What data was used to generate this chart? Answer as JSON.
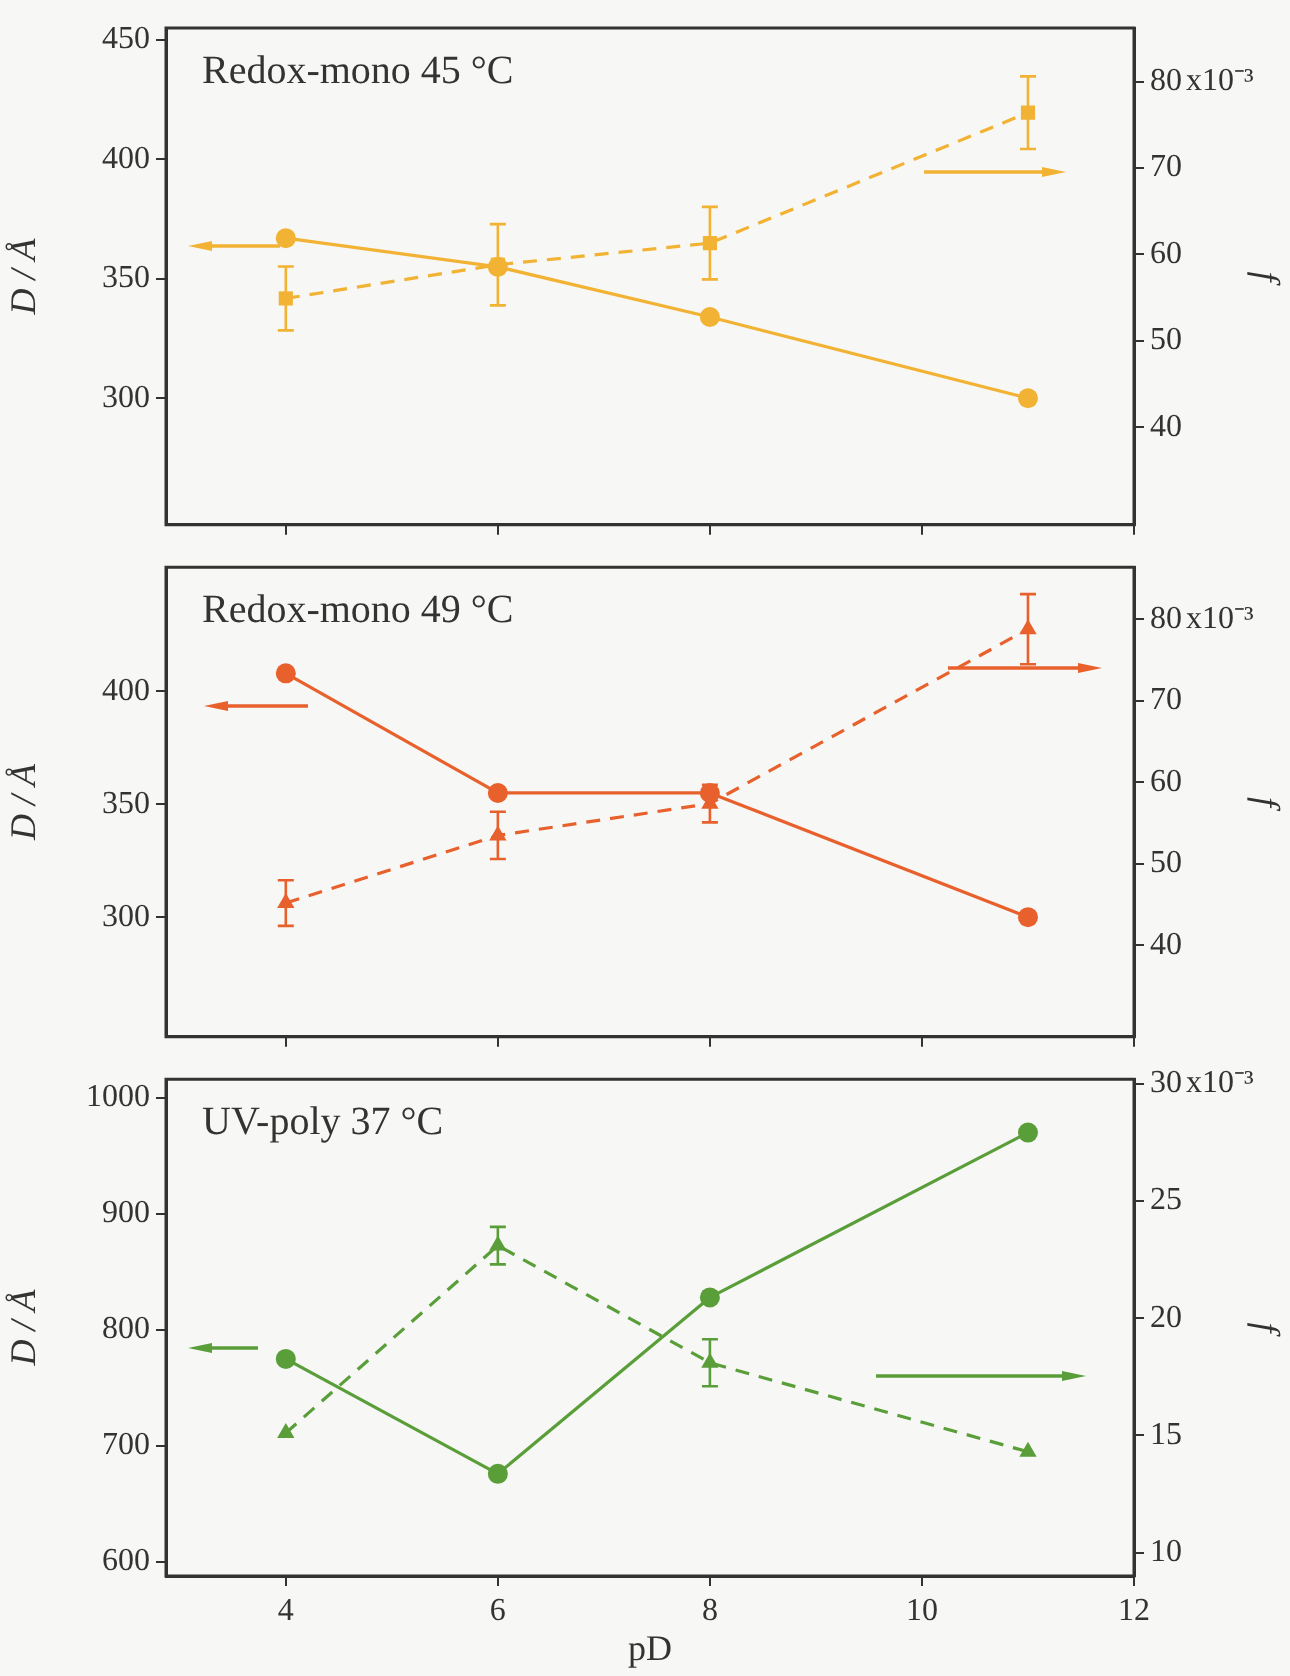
{
  "chart_data": [
    {
      "type": "line",
      "annotations": [
        "Redox-mono 45 °C",
        "x10⁻³"
      ],
      "ylabel": "D / Å",
      "y2label": "f",
      "x": [
        4,
        6,
        8,
        11
      ],
      "xlim": [
        2.87,
        12
      ],
      "xticks": [
        4,
        6,
        8,
        10,
        12
      ],
      "ylim": [
        247,
        455
      ],
      "yticks": [
        300,
        350,
        400,
        450
      ],
      "y2lim": [
        28.7,
        86.2
      ],
      "y2ticks": [
        40,
        50,
        60,
        70,
        80
      ],
      "tick_labels": "y",
      "series": [
        {
          "color": "#f2b233",
          "values": [
            367,
            355,
            334,
            300
          ],
          "marker": "circle",
          "line_style": "solid"
        },
        {
          "color": "#f2b233",
          "axis": "y2",
          "values": [
            54.9,
            58.8,
            61.3,
            76.4
          ],
          "errors": [
            3.7,
            4.7,
            4.2,
            4.2
          ],
          "marker": "square",
          "line_style": "dashed"
        }
      ]
    },
    {
      "type": "line",
      "annotations": [
        "Redox-mono 49 °C",
        "x10⁻³"
      ],
      "ylabel": "D / Å",
      "y2label": "f",
      "x": [
        4,
        6,
        8,
        11
      ],
      "xlim": [
        2.87,
        12
      ],
      "xticks": [
        4,
        6,
        8,
        10,
        12
      ],
      "ylim": [
        247,
        455
      ],
      "yticks": [
        300,
        350,
        400
      ],
      "y2lim": [
        28.8,
        86.4
      ],
      "y2ticks": [
        40,
        50,
        60,
        70,
        80
      ],
      "tick_labels": "y",
      "series": [
        {
          "color": "#e8602c",
          "values": [
            408,
            355,
            355,
            300
          ],
          "marker": "circle",
          "line_style": "solid"
        },
        {
          "color": "#e8602c",
          "axis": "y2",
          "values": [
            45.2,
            53.5,
            57.4,
            78.8
          ],
          "errors": [
            2.8,
            2.9,
            2.3,
            4.3
          ],
          "marker": "triangle",
          "line_style": "dashed"
        }
      ]
    },
    {
      "type": "line",
      "annotations": [
        "UV-poly 37 °C",
        "x10⁻³"
      ],
      "xlabel": "pD",
      "ylabel": "D / Å",
      "y2label": "f",
      "x": [
        4,
        6,
        8,
        11
      ],
      "xlim": [
        2.87,
        12
      ],
      "xticks": [
        4,
        6,
        8,
        10,
        12
      ],
      "ylim": [
        588,
        1016
      ],
      "yticks": [
        600,
        700,
        800,
        900,
        1000
      ],
      "y2lim": [
        9,
        30.2
      ],
      "y2ticks": [
        10,
        15,
        20,
        25,
        30
      ],
      "series": [
        {
          "color": "#5a9e3a",
          "values": [
            775,
            676,
            828,
            970
          ],
          "marker": "circle",
          "line_style": "solid"
        },
        {
          "color": "#5a9e3a",
          "axis": "y2",
          "values": [
            15.1,
            23.1,
            18.1,
            14.3
          ],
          "errors": [
            null,
            0.8,
            1.0,
            null
          ],
          "marker": "triangle",
          "line_style": "dashed"
        }
      ]
    }
  ]
}
